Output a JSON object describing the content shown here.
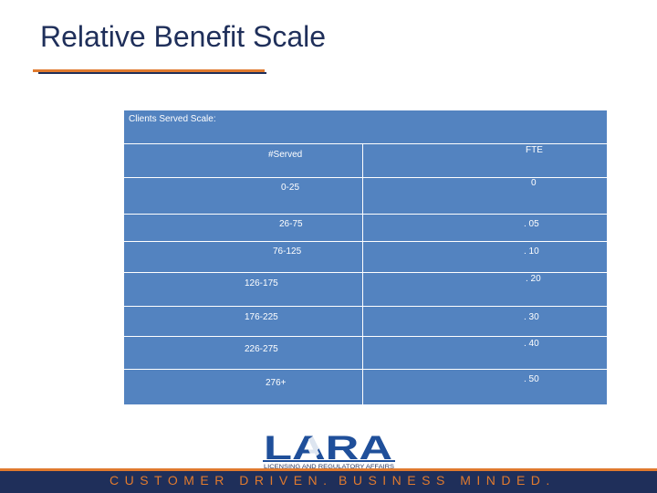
{
  "slide": {
    "title": "Relative Benefit Scale",
    "panel_label": "Clients Served Scale:",
    "columns": [
      "#Served",
      "FTE"
    ],
    "rows": [
      [
        "0-25",
        "0"
      ],
      [
        "26-75",
        ". 05"
      ],
      [
        "76-125",
        ". 10"
      ],
      [
        "126-175",
        ". 20"
      ],
      [
        "176-225",
        ". 30"
      ],
      [
        "226-275",
        ". 40"
      ],
      [
        "276+",
        ". 50"
      ]
    ],
    "logo_text": "LARA",
    "logo_subtext": "LICENSING AND REGULATORY AFFAIRS",
    "tagline_left": "CUSTOMER DRIVEN.",
    "tagline_right": "BUSINESS MINDED."
  },
  "colors": {
    "title": "#1f2f5a",
    "accent_orange": "#e07a2e",
    "navy": "#1f2f5a",
    "panel_blue": "#5383c0"
  }
}
